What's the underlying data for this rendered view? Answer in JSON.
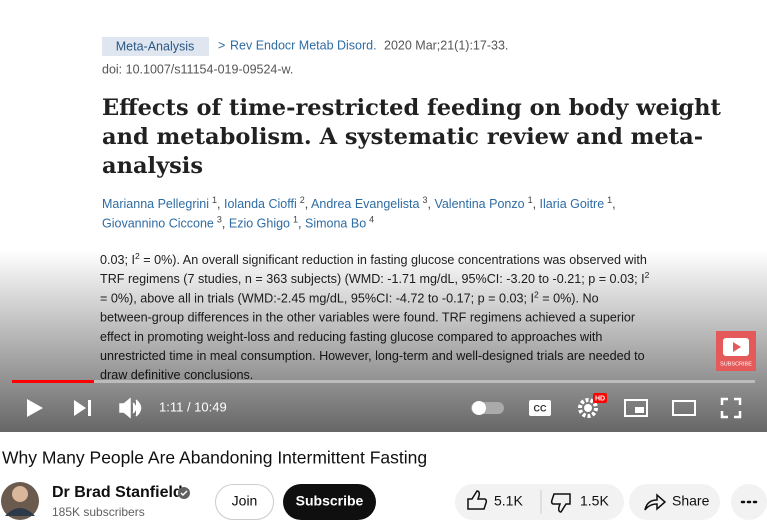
{
  "video_frame": {
    "badge": "Meta-Analysis",
    "journal_prefix": ">",
    "journal": "Rev Endocr Metab Disord.",
    "citation": "2020 Mar;21(1):17-33.",
    "doi": "doi: 10.1007/s11154-019-09524-w.",
    "title_lines": [
      "Effects of time-restricted feeding on body weight",
      "and metabolism. A systematic review and meta-",
      "analysis"
    ],
    "authors": [
      [
        {
          "name": "Marianna Pellegrini",
          "sup": "1",
          "sep": ","
        },
        {
          "name": "Iolanda Cioffi",
          "sup": "2",
          "sep": ","
        },
        {
          "name": "Andrea Evangelista",
          "sup": "3",
          "sep": ","
        },
        {
          "name": "Valentina Ponzo",
          "sup": "1",
          "sep": ","
        },
        {
          "name": "Ilaria Goitre",
          "sup": "1",
          "sep": ","
        }
      ],
      [
        {
          "name": "Giovannino Ciccone",
          "sup": "3",
          "sep": ","
        },
        {
          "name": "Ezio Ghigo",
          "sup": "1",
          "sep": ","
        },
        {
          "name": "Simona Bo",
          "sup": "4"
        }
      ]
    ],
    "abstract_lines": [
      [
        "0.03; I",
        {
          "sup": "2"
        },
        " = 0%). An overall significant reduction in fasting glucose concentrations was observed with"
      ],
      [
        "TRF regimens (7 studies, n = 363 subjects) (WMD: -1.71 mg/dL, 95%CI: -3.20 to -0.21; p = 0.03; I",
        {
          "sup": "2"
        }
      ],
      [
        "= 0%), above all in trials (WMD:-2.45 mg/dL, 95%CI: -4.72 to -0.17; p = 0.03; I",
        {
          "sup": "2"
        },
        " = 0%). No"
      ],
      [
        "between-group differences in the other variables were found. TRF regimens achieved a superior"
      ],
      [
        "effect in promoting weight-loss and reducing fasting glucose compared to approaches with"
      ],
      [
        "unrestricted time in meal consumption. However, long-term and well-designed trials are needed to"
      ],
      [
        "draw definitive conclusions."
      ]
    ],
    "watermark": "SUBSCRIBE"
  },
  "player": {
    "time": "1:11 / 10:49",
    "hd_badge": "HD"
  },
  "video": {
    "title": "Why Many People Are Abandoning Intermittent Fasting",
    "channel": "Dr Brad Stanfield",
    "subscribers": "185K subscribers",
    "join": "Join",
    "subscribe": "Subscribe",
    "likes": "5.1K",
    "dislikes": "1.5K",
    "share": "Share"
  }
}
